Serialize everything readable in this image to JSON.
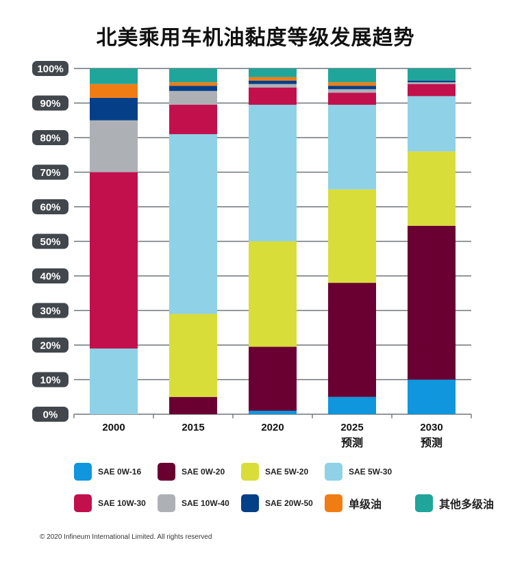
{
  "chart_data": {
    "type": "bar",
    "stacked": true,
    "title": "北美乘用车机油黏度等级发展趋势",
    "xlabel": "",
    "ylabel": "",
    "ylim": [
      0,
      100
    ],
    "y_ticks": [
      "0%",
      "10%",
      "20%",
      "30%",
      "40%",
      "50%",
      "60%",
      "70%",
      "80%",
      "90%",
      "100%"
    ],
    "grid": true,
    "legend_position": "bottom",
    "categories": [
      {
        "label": "2000",
        "sub": ""
      },
      {
        "label": "2015",
        "sub": ""
      },
      {
        "label": "2020",
        "sub": ""
      },
      {
        "label": "2025",
        "sub": "预测"
      },
      {
        "label": "2030",
        "sub": "预测"
      }
    ],
    "series": [
      {
        "name": "SAE 0W-16",
        "color": "#0f96dc",
        "values": [
          0,
          0,
          1,
          5,
          10
        ]
      },
      {
        "name": "SAE 0W-20",
        "color": "#6a0032",
        "values": [
          0,
          5,
          18.5,
          33,
          44.5
        ]
      },
      {
        "name": "SAE 5W-20",
        "color": "#d9dd3a",
        "values": [
          0,
          24,
          30.5,
          27,
          21.5
        ]
      },
      {
        "name": "SAE 5W-30",
        "color": "#8fd1e6",
        "values": [
          19,
          52,
          39.5,
          24.5,
          16
        ]
      },
      {
        "name": "SAE 10W-30",
        "color": "#c2104c",
        "values": [
          51,
          8.5,
          5,
          3.5,
          3.5
        ]
      },
      {
        "name": "SAE 10W-40",
        "color": "#adb1b6",
        "values": [
          15,
          4,
          1,
          1,
          0.5
        ]
      },
      {
        "name": "SAE 20W-50",
        "color": "#043f88",
        "values": [
          6.5,
          1.5,
          1,
          1,
          0.5
        ]
      },
      {
        "name": "单级油",
        "color": "#ef7d14",
        "values": [
          4,
          1,
          1,
          1,
          0
        ]
      },
      {
        "name": "其他多级油",
        "color": "#20a59a",
        "values": [
          4.5,
          4,
          2.5,
          4,
          3.5
        ]
      }
    ]
  },
  "footer": {
    "copyright": "© 2020 Infineum International Limited. All rights reserved"
  }
}
